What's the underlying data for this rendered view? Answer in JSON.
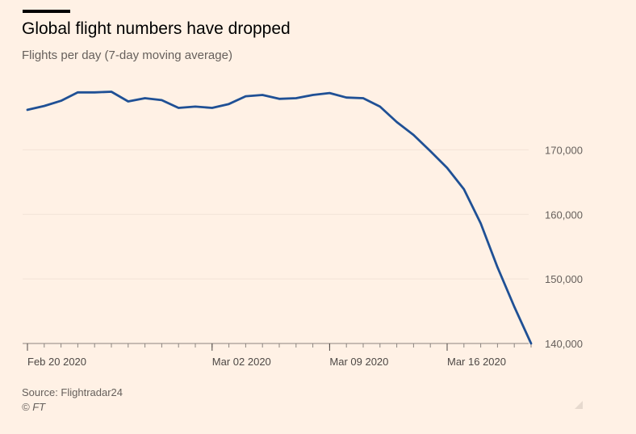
{
  "chart_data": {
    "type": "line",
    "title": "Global flight numbers have dropped",
    "subtitle": "Flights per day (7-day moving average)",
    "xlabel": "",
    "ylabel": "",
    "x": [
      "2020-02-20",
      "2020-02-21",
      "2020-02-22",
      "2020-02-23",
      "2020-02-24",
      "2020-02-25",
      "2020-02-26",
      "2020-02-27",
      "2020-02-28",
      "2020-02-29",
      "2020-03-01",
      "2020-03-02",
      "2020-03-03",
      "2020-03-04",
      "2020-03-05",
      "2020-03-06",
      "2020-03-07",
      "2020-03-08",
      "2020-03-09",
      "2020-03-10",
      "2020-03-11",
      "2020-03-12",
      "2020-03-13",
      "2020-03-14",
      "2020-03-15",
      "2020-03-16",
      "2020-03-17",
      "2020-03-18",
      "2020-03-19",
      "2020-03-20",
      "2020-03-21"
    ],
    "series": [
      {
        "values": [
          176200,
          176800,
          177600,
          178900,
          178900,
          179000,
          177500,
          178000,
          177700,
          176500,
          176700,
          176500,
          177100,
          178300,
          178500,
          177900,
          178000,
          178500,
          178800,
          178100,
          178000,
          176700,
          174300,
          172300,
          169800,
          167200,
          163900,
          158600,
          151800,
          145700,
          140000
        ],
        "color": "#1f5095"
      }
    ],
    "xticks": [
      {
        "x": "2020-02-20",
        "label": "Feb 20 2020"
      },
      {
        "x": "2020-03-02",
        "label": "Mar 02 2020"
      },
      {
        "x": "2020-03-09",
        "label": "Mar 09 2020"
      },
      {
        "x": "2020-03-16",
        "label": "Mar 16 2020"
      }
    ],
    "yticks": [
      {
        "value": 140000,
        "label": "140,000"
      },
      {
        "value": 150000,
        "label": "150,000"
      },
      {
        "value": 160000,
        "label": "160,000"
      },
      {
        "value": 170000,
        "label": "170,000"
      }
    ],
    "ylim": [
      140000,
      180000
    ],
    "grid": true,
    "y_axis_side": "right",
    "colors": {
      "background": "#fff1e5",
      "gridline": "#f2e3d7",
      "axis": "#8c8580",
      "line": "#1f5095"
    }
  },
  "footer": {
    "source": "Source: Flightradar24",
    "credit": "© FT"
  }
}
